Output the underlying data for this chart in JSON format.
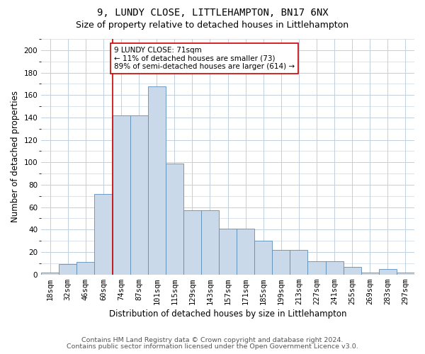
{
  "title": "9, LUNDY CLOSE, LITTLEHAMPTON, BN17 6NX",
  "subtitle": "Size of property relative to detached houses in Littlehampton",
  "xlabel": "Distribution of detached houses by size in Littlehampton",
  "ylabel": "Number of detached properties",
  "footnote1": "Contains HM Land Registry data © Crown copyright and database right 2024.",
  "footnote2": "Contains public sector information licensed under the Open Government Licence v3.0.",
  "categories": [
    "18sqm",
    "32sqm",
    "46sqm",
    "60sqm",
    "74sqm",
    "87sqm",
    "101sqm",
    "115sqm",
    "129sqm",
    "143sqm",
    "157sqm",
    "171sqm",
    "185sqm",
    "199sqm",
    "213sqm",
    "227sqm",
    "241sqm",
    "255sqm",
    "269sqm",
    "283sqm",
    "297sqm"
  ],
  "bar_values": [
    2,
    9,
    11,
    72,
    142,
    142,
    168,
    99,
    57,
    57,
    41,
    41,
    30,
    22,
    22,
    12,
    12,
    7,
    2,
    5,
    2
  ],
  "ylim": [
    0,
    210
  ],
  "yticks": [
    0,
    20,
    40,
    60,
    80,
    100,
    120,
    140,
    160,
    180,
    200
  ],
  "bar_color": "#c9d9ea",
  "bar_edge_color": "#5b8db8",
  "vline_index": 3.5,
  "vline_color": "#cc0000",
  "annotation_text": "9 LUNDY CLOSE: 71sqm\n← 11% of detached houses are smaller (73)\n89% of semi-detached houses are larger (614) →",
  "annotation_box_facecolor": "#ffffff",
  "annotation_box_edgecolor": "#cc0000",
  "background_color": "#ffffff",
  "grid_color": "#c0d0e0",
  "title_fontsize": 10,
  "subtitle_fontsize": 9,
  "axis_label_fontsize": 8.5,
  "tick_fontsize": 7.5,
  "annotation_fontsize": 7.5,
  "footnote_fontsize": 6.8
}
